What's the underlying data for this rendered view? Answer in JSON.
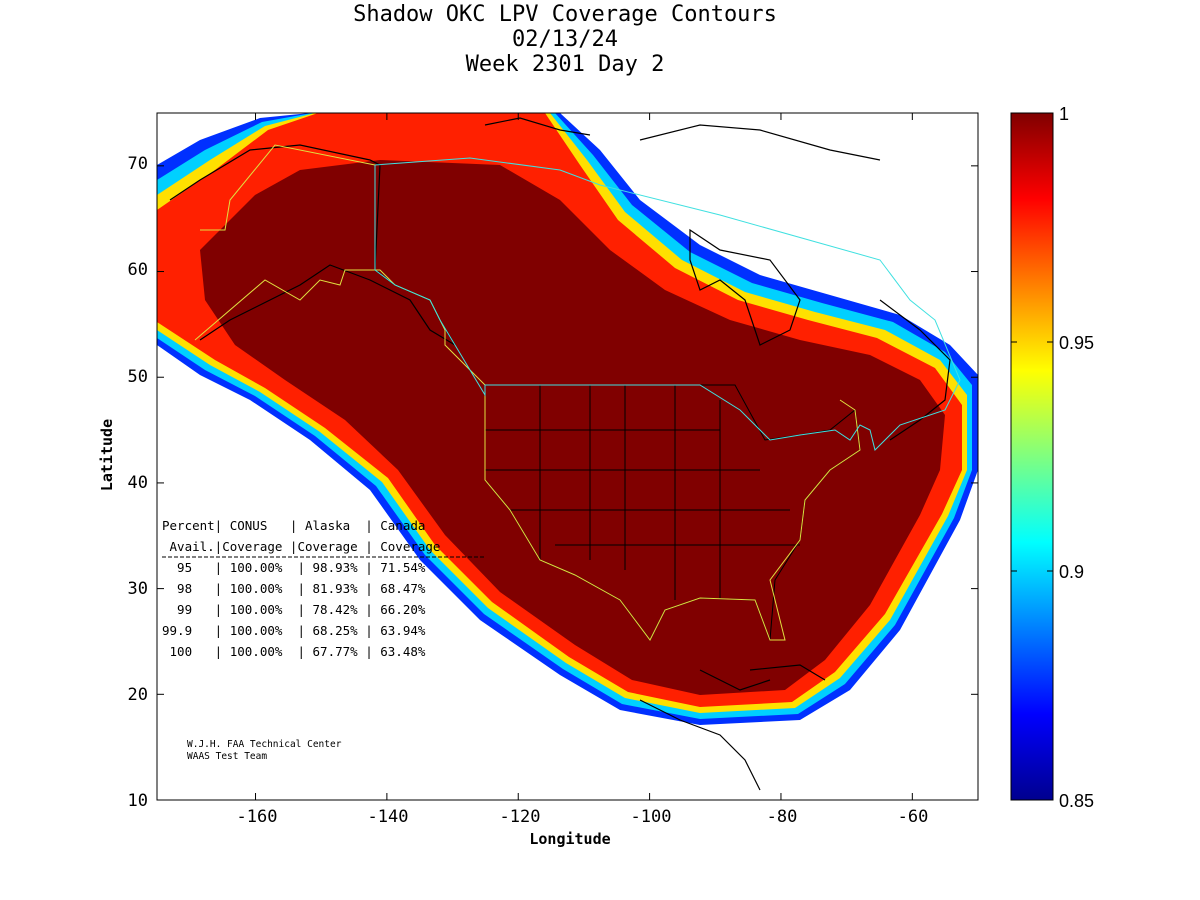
{
  "title": {
    "line1": "Shadow OKC LPV Coverage Contours",
    "line2": "02/13/24",
    "line3": "Week 2301 Day 2"
  },
  "axes": {
    "xlabel": "Longitude",
    "ylabel": "Latitude",
    "xticks": [
      "-160",
      "-140",
      "-120",
      "-100",
      "-80",
      "-60"
    ],
    "yticks": [
      "70",
      "60",
      "50",
      "40",
      "30",
      "20",
      "10"
    ],
    "xlim": [
      -175,
      -50
    ],
    "ylim": [
      10,
      75
    ]
  },
  "colorbar": {
    "ticks": [
      "1",
      "0.95",
      "0.9",
      "0.85"
    ],
    "range": [
      0.85,
      1
    ],
    "colormap": "jet"
  },
  "table": {
    "header1": "Percent| CONUS   | Alaska  | Canada",
    "header2": " Avail.|Coverage |Coverage | Coverage",
    "rows": [
      "  95   | 100.00%  | 98.93% | 71.54%",
      "  98   | 100.00%  | 81.93% | 68.47%",
      "  99   | 100.00%  | 78.42% | 66.20%",
      "99.9   | 100.00%  | 68.25% | 63.94%",
      " 100   | 100.00%  | 67.77% | 63.48%"
    ]
  },
  "credit": {
    "line1": "W.J.H. FAA Technical Center",
    "line2": "WAAS Test Team"
  },
  "chart_data": {
    "type": "heatmap",
    "title": "Shadow OKC LPV Coverage Contours",
    "xlabel": "Longitude",
    "ylabel": "Latitude",
    "xlim": [
      -175,
      -50
    ],
    "ylim": [
      10,
      75
    ],
    "colorbar_range": [
      0.85,
      1
    ],
    "coverage_table": {
      "columns": [
        "Percent Avail.",
        "CONUS Coverage",
        "Alaska Coverage",
        "Canada Coverage"
      ],
      "rows": [
        [
          "95",
          "100.00%",
          "98.93%",
          "71.54%"
        ],
        [
          "98",
          "100.00%",
          "81.93%",
          "68.47%"
        ],
        [
          "99",
          "100.00%",
          "78.42%",
          "66.20%"
        ],
        [
          "99.9",
          "100.00%",
          "68.25%",
          "63.94%"
        ],
        [
          "100",
          "100.00%",
          "67.77%",
          "63.48%"
        ]
      ]
    }
  }
}
